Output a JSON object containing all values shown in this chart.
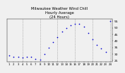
{
  "title": "Milwaukee Weather Wind Chill\nHourly Average\n(24 Hours)",
  "title_fontsize": 3.8,
  "x_hours": [
    1,
    2,
    3,
    4,
    5,
    6,
    7,
    8,
    9,
    10,
    11,
    12,
    13,
    14,
    15,
    16,
    17,
    18,
    19,
    20,
    21,
    22,
    23,
    24
  ],
  "y_values": [
    29.0,
    28.0,
    27.5,
    27.0,
    27.5,
    28.0,
    26.0,
    25.5,
    30.0,
    35.0,
    39.0,
    43.0,
    47.0,
    50.0,
    52.0,
    53.0,
    53.0,
    51.0,
    46.0,
    41.0,
    37.0,
    34.0,
    31.5,
    55.0
  ],
  "dot_color": "#0000cc",
  "dot_size": 1.5,
  "grid_color": "#888888",
  "bg_color": "#f0f0f0",
  "ylim": [
    24,
    57
  ],
  "yticks": [
    25,
    30,
    35,
    40,
    45,
    50,
    55
  ],
  "ytick_fontsize": 3.2,
  "xtick_labels": [
    "1",
    "2",
    "3",
    "4",
    "5",
    "6",
    "7",
    "8",
    "9",
    "10",
    "11",
    "12",
    "13",
    "14",
    "15",
    "16",
    "17",
    "18",
    "19",
    "20",
    "21",
    "22",
    "23",
    "24"
  ],
  "xtick_fontsize": 2.8,
  "vgrid_positions": [
    4,
    8,
    12,
    16,
    20,
    24
  ],
  "axis_linewidth": 0.3
}
